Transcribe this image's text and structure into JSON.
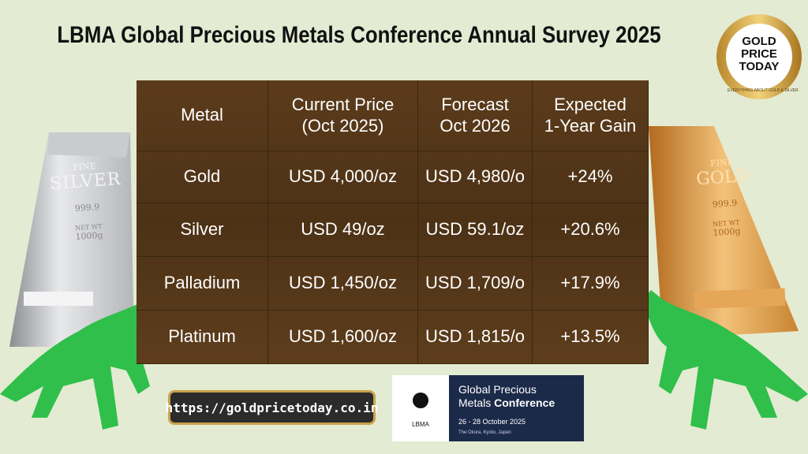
{
  "title": "LBMA Global Precious Metals Conference Annual Survey 2025",
  "logo": {
    "lines": [
      "GOLD",
      "PRICE",
      "TODAY"
    ],
    "ring": "EVERYTHING ABOUT GOLD & SILVER"
  },
  "table": {
    "header": [
      [
        "Metal"
      ],
      [
        "Current Price",
        "(Oct 2025)"
      ],
      [
        "Forecast",
        "Oct 2026"
      ],
      [
        "Expected",
        "1-Year Gain"
      ]
    ],
    "rows": [
      [
        "Gold",
        "USD 4,000/oz",
        "USD 4,980/o",
        "+24%"
      ],
      [
        "Silver",
        "USD 49/oz",
        "USD 59.1/oz",
        "+20.6%"
      ],
      [
        "Palladium",
        "USD 1,450/oz",
        "USD 1,709/o",
        "+17.9%"
      ],
      [
        "Platinum",
        "USD 1,600/oz",
        "USD 1,815/o",
        "+13.5%"
      ]
    ]
  },
  "bars": {
    "silver": [
      "FINE",
      "SILVER",
      "999.9",
      "NET WT",
      "1000g"
    ],
    "gold": [
      "FINE",
      "GOLD",
      "999.9",
      "NET WT",
      "1000g"
    ]
  },
  "url": "https://goldpricetoday.co.in",
  "conference": {
    "org": "LBMA",
    "lines": [
      "Global Precious",
      "Metals",
      "Conference"
    ],
    "dates": "26 - 28 October 2025",
    "venue": "The Okura, Kyoto, Japan"
  }
}
